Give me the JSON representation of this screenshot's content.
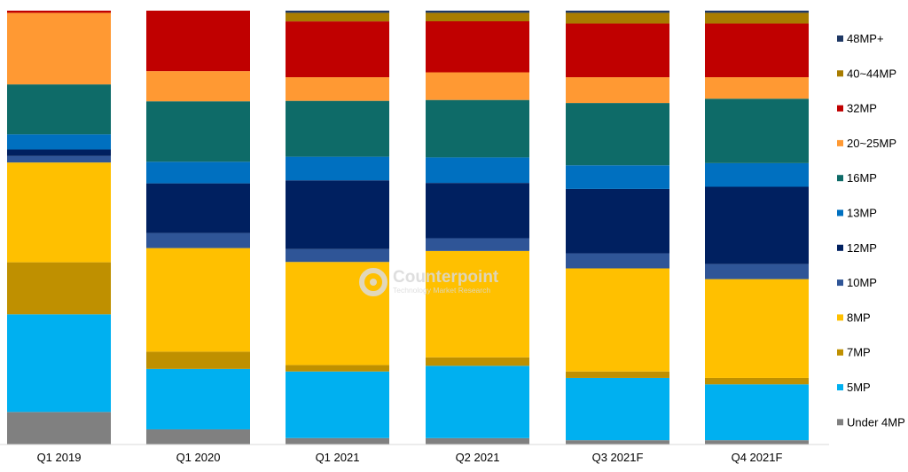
{
  "chart_data": {
    "type": "bar",
    "stacked": true,
    "percent_stacked": true,
    "categories": [
      "Q1 2019",
      "Q1 2020",
      "Q1 2021",
      "Q2 2021",
      "Q3 2021F",
      "Q4 2021F"
    ],
    "series": [
      {
        "name": "Under 4MP",
        "color": "#808080",
        "values": [
          7.5,
          3.5,
          1.5,
          1.5,
          1.0,
          1.0
        ]
      },
      {
        "name": "5MP",
        "color": "#00b0f0",
        "values": [
          22.5,
          14.0,
          15.5,
          17.0,
          14.5,
          13.0
        ]
      },
      {
        "name": "7MP",
        "color": "#bf9000",
        "values": [
          12.0,
          4.0,
          1.5,
          2.0,
          1.5,
          1.5
        ]
      },
      {
        "name": "8MP",
        "color": "#ffc000",
        "values": [
          23.0,
          24.0,
          24.0,
          25.0,
          24.0,
          23.0
        ]
      },
      {
        "name": "10MP",
        "color": "#2f5597",
        "values": [
          1.5,
          3.5,
          3.0,
          3.0,
          3.5,
          3.5
        ]
      },
      {
        "name": "12MP",
        "color": "#002060",
        "values": [
          1.5,
          11.5,
          16.0,
          13.0,
          15.0,
          18.0
        ]
      },
      {
        "name": "13MP",
        "color": "#0070c0",
        "values": [
          3.5,
          5.0,
          5.5,
          6.0,
          5.5,
          5.5
        ]
      },
      {
        "name": "16MP",
        "color": "#0e6b68",
        "values": [
          11.5,
          14.0,
          13.0,
          13.5,
          14.5,
          15.0
        ]
      },
      {
        "name": "20~25MP",
        "color": "#ff9933",
        "values": [
          16.5,
          7.0,
          5.5,
          6.5,
          6.0,
          5.0
        ]
      },
      {
        "name": "32MP",
        "color": "#c00000",
        "values": [
          0.5,
          14.0,
          13.0,
          12.0,
          12.5,
          12.5
        ]
      },
      {
        "name": "40~44MP",
        "color": "#a87c00",
        "values": [
          0.0,
          0.0,
          2.0,
          2.0,
          2.5,
          2.5
        ]
      },
      {
        "name": "48MP+",
        "color": "#1f3864",
        "values": [
          0.0,
          0.0,
          0.5,
          0.5,
          0.5,
          0.5
        ]
      }
    ],
    "ylim": [
      0,
      100
    ],
    "grid": false,
    "legend": "right",
    "watermark": {
      "title": "Counterpoint",
      "subtitle": "Technology Market Research"
    }
  }
}
